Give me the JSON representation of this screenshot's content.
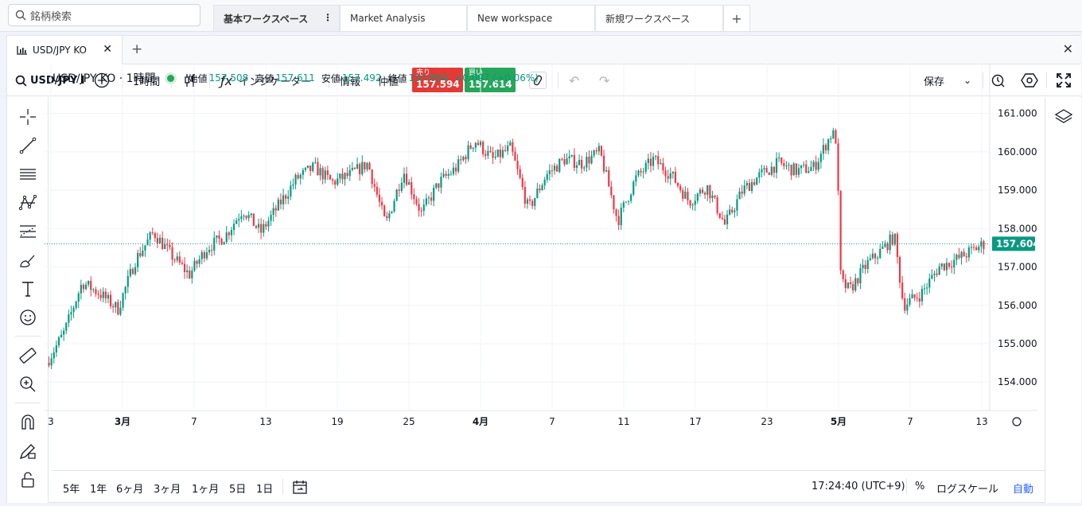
{
  "topbar": {
    "search_placeholder": "銘柄検索",
    "workspaces": [
      {
        "label": "基本ワークスペース",
        "active": true
      },
      {
        "label": "Market Analysis",
        "active": false
      },
      {
        "label": "New workspace",
        "active": false
      },
      {
        "label": "新規ワークスペース",
        "active": false
      }
    ],
    "add_label": "+",
    "menu_label": "⋮"
  },
  "chart_tab": {
    "label": "USD/JPY KO",
    "close": "✕",
    "add": "+",
    "window_close": "✕"
  },
  "toolbar": {
    "symbol": "USD/JPY I",
    "interval": "1時間",
    "indicators": "インジケーター",
    "info": "情報",
    "mid": "仲値",
    "sell": {
      "label": "売り",
      "price": "157.594"
    },
    "buy": {
      "label": "買い",
      "price": "157.614"
    },
    "save": "保存"
  },
  "legend": {
    "symbol": "USD/JPY KO · 1時間",
    "open_label": "始値",
    "open": "157.508",
    "high_label": "高値",
    "high": "157.611",
    "low_label": "安値",
    "low": "157.492",
    "close_label": "終値",
    "close": "157.604",
    "change": "+0.097 (+0.06%)"
  },
  "colors": {
    "up": "#089981",
    "down": "#f23645",
    "last_price": "#089981",
    "grid": "#f0f3fa"
  },
  "chart_data": {
    "type": "candlestick",
    "y_ticks": [
      "161.000",
      "160.000",
      "159.000",
      "158.000",
      "157.000",
      "156.000",
      "155.000",
      "154.000"
    ],
    "y_range": [
      153.3,
      161.8
    ],
    "x_ticks": [
      "3",
      "3月",
      "7",
      "13",
      "19",
      "25",
      "4月",
      "7",
      "11",
      "17",
      "23",
      "5月",
      "7",
      "13"
    ],
    "last_price": "157.604",
    "price_path": [
      [
        0,
        154.5
      ],
      [
        0.02,
        155.3
      ],
      [
        0.04,
        156.6
      ],
      [
        0.06,
        156.3
      ],
      [
        0.08,
        155.9
      ],
      [
        0.1,
        157.2
      ],
      [
        0.12,
        157.9
      ],
      [
        0.14,
        157.3
      ],
      [
        0.16,
        156.8
      ],
      [
        0.18,
        157.5
      ],
      [
        0.2,
        157.8
      ],
      [
        0.22,
        158.5
      ],
      [
        0.24,
        157.9
      ],
      [
        0.26,
        158.6
      ],
      [
        0.28,
        159.3
      ],
      [
        0.3,
        159.6
      ],
      [
        0.32,
        159.2
      ],
      [
        0.34,
        159.4
      ],
      [
        0.36,
        159.7
      ],
      [
        0.38,
        158.1
      ],
      [
        0.4,
        159.5
      ],
      [
        0.42,
        158.4
      ],
      [
        0.44,
        159.2
      ],
      [
        0.46,
        159.6
      ],
      [
        0.48,
        160.3
      ],
      [
        0.5,
        159.8
      ],
      [
        0.52,
        160.1
      ],
      [
        0.54,
        158.5
      ],
      [
        0.56,
        159.4
      ],
      [
        0.58,
        159.8
      ],
      [
        0.6,
        159.7
      ],
      [
        0.62,
        160.0
      ],
      [
        0.64,
        158.2
      ],
      [
        0.66,
        159.3
      ],
      [
        0.68,
        159.8
      ],
      [
        0.7,
        159.4
      ],
      [
        0.72,
        158.7
      ],
      [
        0.74,
        159.1
      ],
      [
        0.76,
        158.1
      ],
      [
        0.78,
        159.0
      ],
      [
        0.8,
        159.4
      ],
      [
        0.82,
        159.7
      ],
      [
        0.84,
        159.5
      ],
      [
        0.86,
        159.6
      ],
      [
        0.88,
        160.5
      ],
      [
        0.885,
        160.3
      ],
      [
        0.89,
        156.6
      ],
      [
        0.9,
        156.4
      ],
      [
        0.92,
        157.1
      ],
      [
        0.93,
        157.3
      ],
      [
        0.95,
        157.8
      ],
      [
        0.96,
        156.0
      ],
      [
        0.98,
        156.3
      ],
      [
        1.0,
        157.0
      ],
      [
        1.02,
        157.2
      ],
      [
        1.05,
        157.6
      ]
    ]
  },
  "bottombar": {
    "ranges": [
      "5年",
      "1年",
      "6ヶ月",
      "3ヶ月",
      "1ヶ月",
      "5日",
      "1日"
    ],
    "clock": "17:24:40 (UTC+9)",
    "percent": "%",
    "log": "ログスケール",
    "auto": "自動"
  }
}
